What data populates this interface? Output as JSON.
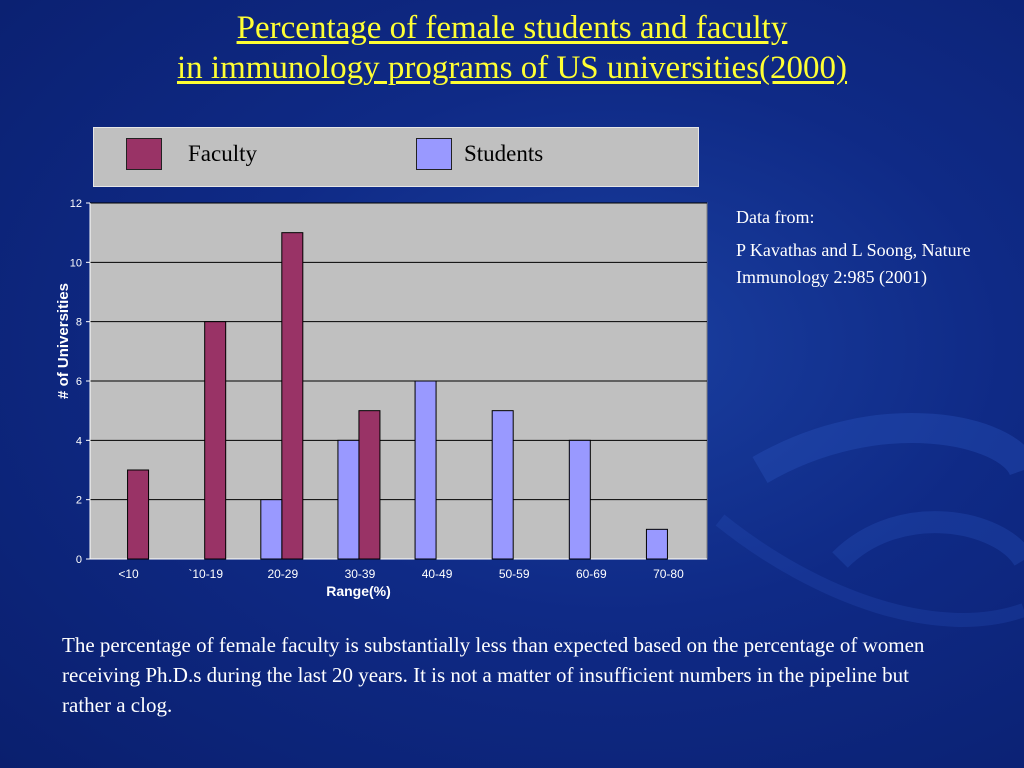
{
  "slide": {
    "title_line1": "Percentage of  female students and faculty",
    "title_line2": "in immunology programs of  US universities(2000)",
    "note_heading": "Data from:",
    "note_citation": "P Kavathas and L Soong, Nature Immunology 2:985 (2001)",
    "body_text": "The percentage of  female faculty is substantially less than expected based on the percentage of  women receiving Ph.D.s during the last 20 years.  It is not a matter of insufficient numbers in the pipeline but rather a clog.",
    "background_color": "#0f2a86",
    "title_color": "#ffff33"
  },
  "legend": {
    "faculty_label": "Faculty",
    "students_label": "Students",
    "faculty_color": "#993366",
    "students_color": "#9999ff"
  },
  "chart_data": {
    "type": "bar",
    "categories": [
      "<10",
      "`10-19",
      "20-29",
      "30-39",
      "40-49",
      "50-59",
      "60-69",
      "70-80"
    ],
    "series": [
      {
        "name": "Faculty",
        "color": "#993366",
        "values": [
          3,
          8,
          11,
          5,
          0,
          0,
          0,
          0
        ]
      },
      {
        "name": "Students",
        "color": "#9999ff",
        "values": [
          0,
          0,
          2,
          4,
          6,
          5,
          4,
          1
        ]
      }
    ],
    "xlabel": "Range(%)",
    "ylabel": "# of Universities",
    "ylim": [
      0,
      12
    ],
    "yticks": [
      0,
      2,
      4,
      6,
      8,
      10,
      12
    ],
    "grid": true,
    "legend_position": "top"
  }
}
